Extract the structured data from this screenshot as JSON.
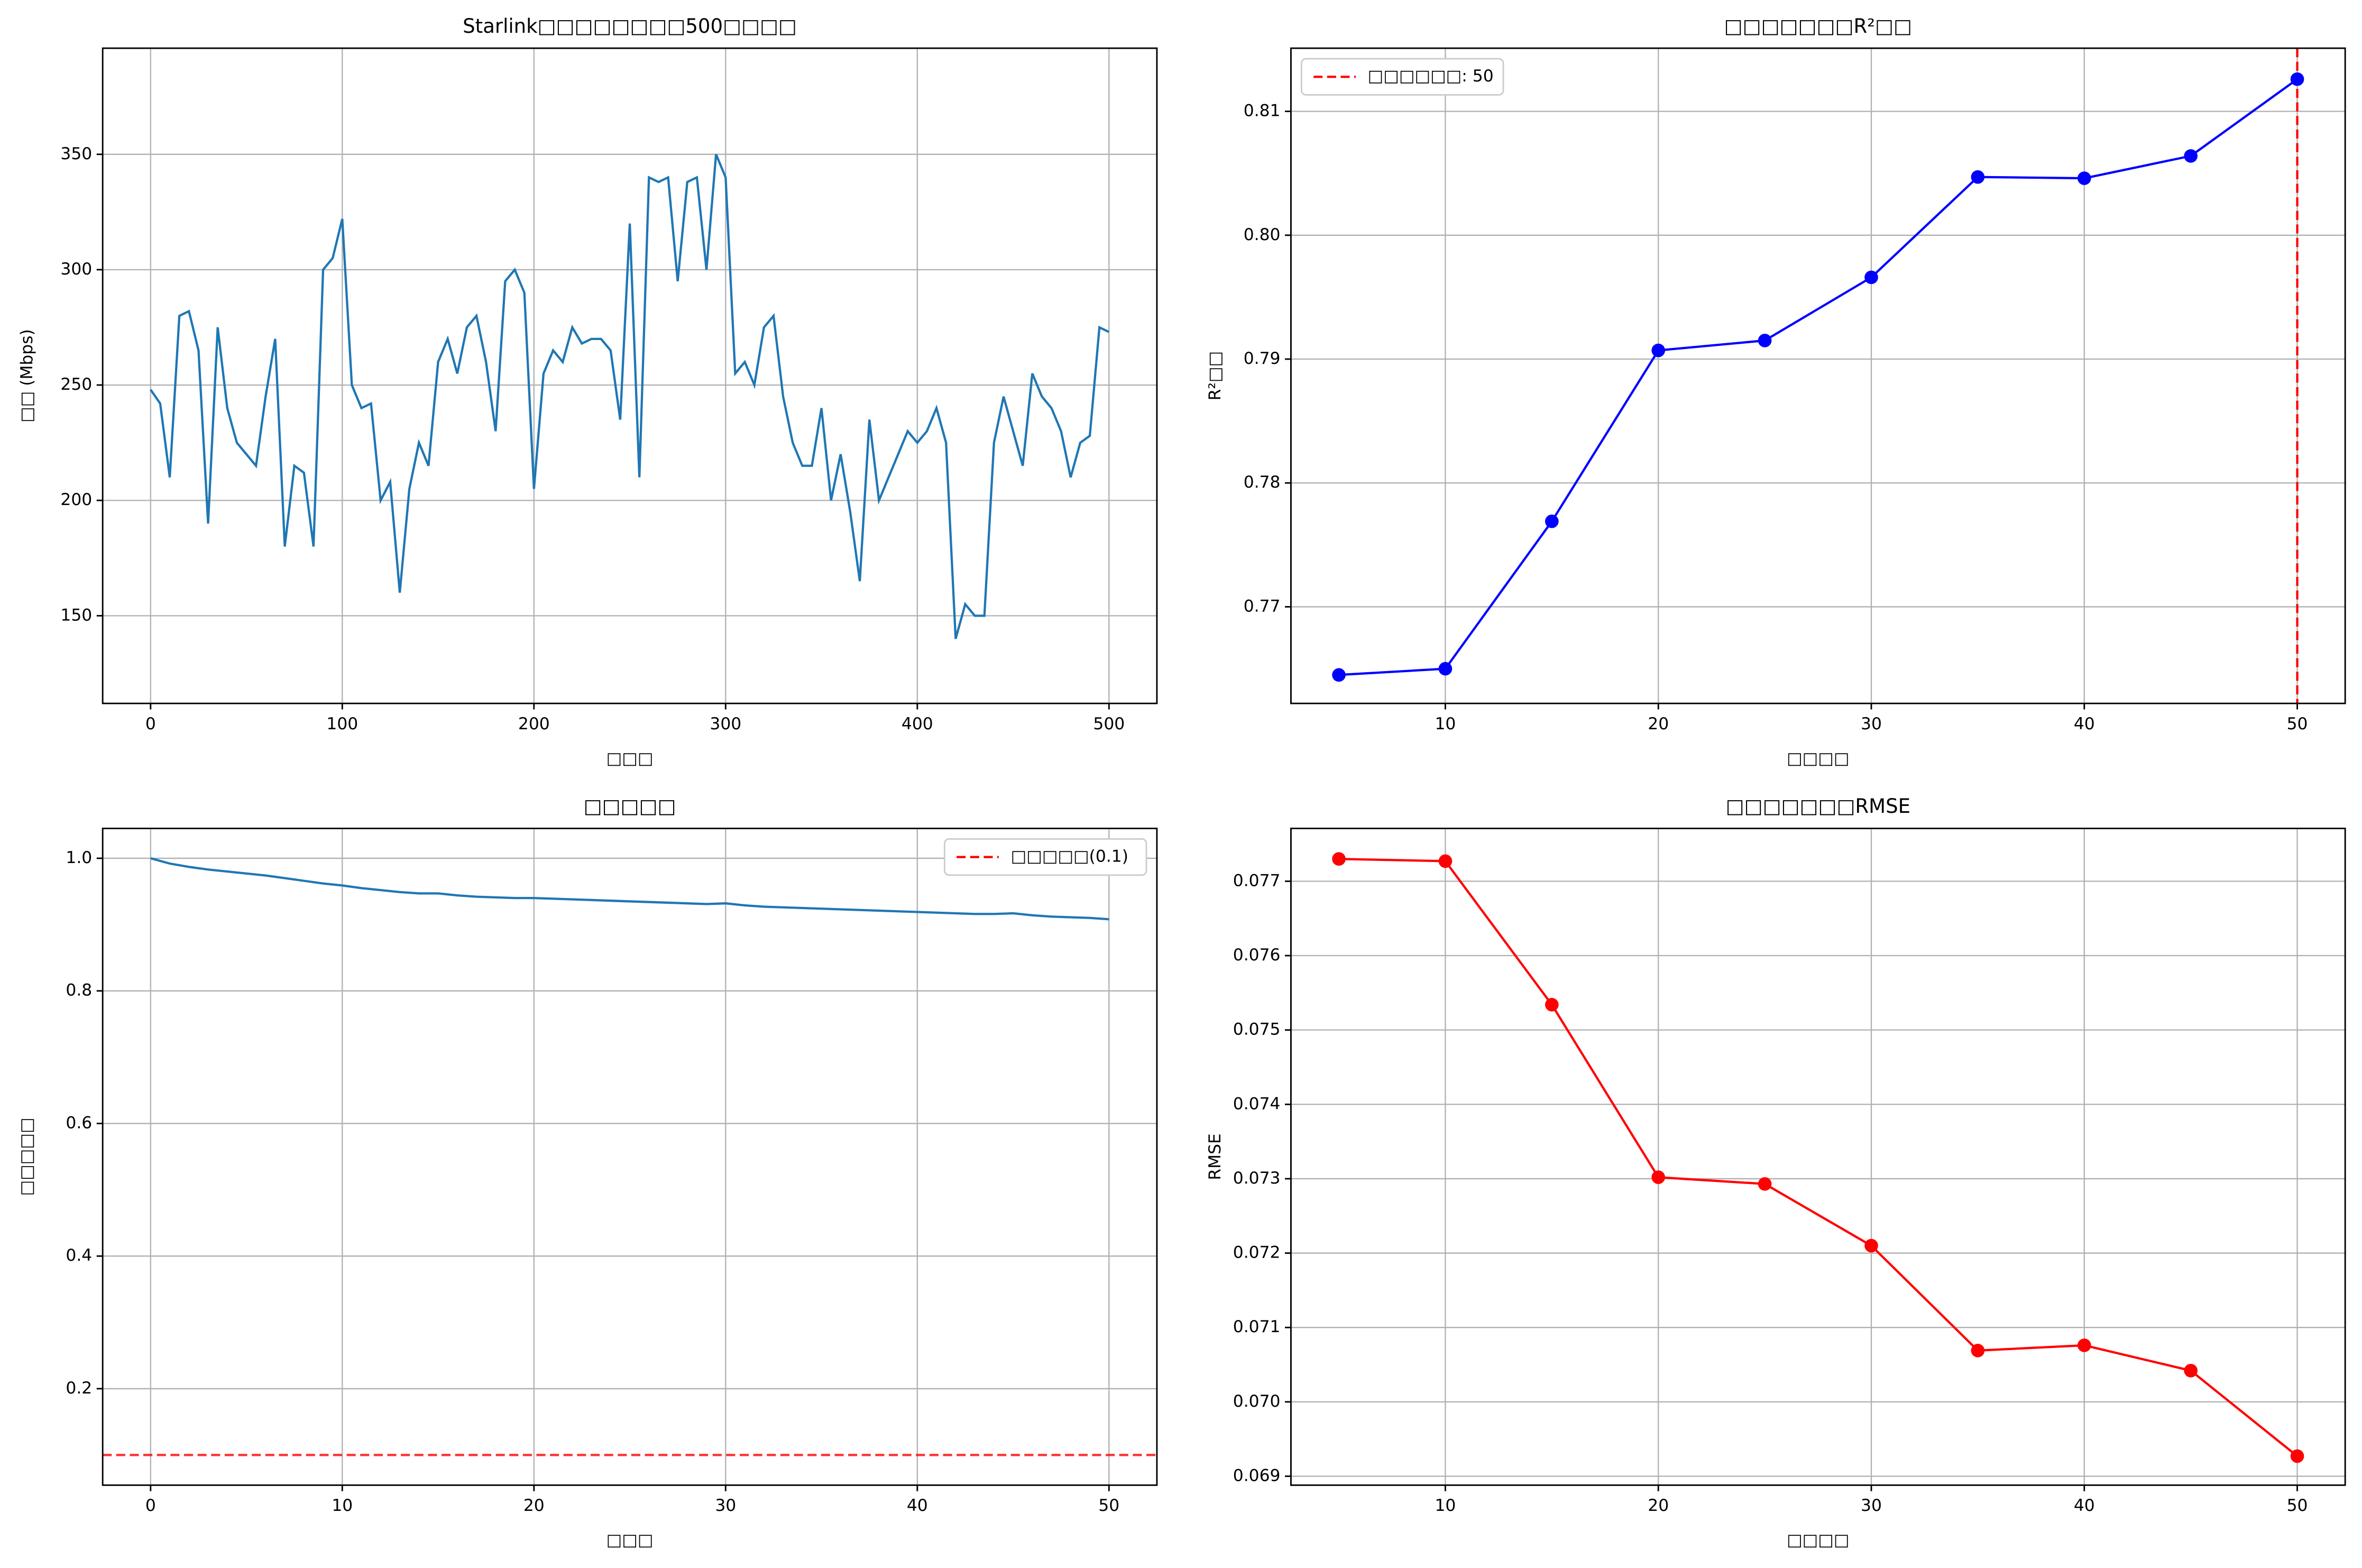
{
  "chart_data": [
    {
      "type": "line",
      "title": "Starlink□□□□□□□□500□□□□",
      "xlabel": "□□□",
      "ylabel": "□□ (Mbps)",
      "x": [
        0,
        5,
        10,
        15,
        20,
        25,
        30,
        35,
        40,
        45,
        50,
        55,
        60,
        65,
        70,
        75,
        80,
        85,
        90,
        95,
        100,
        105,
        110,
        115,
        120,
        125,
        130,
        135,
        140,
        145,
        150,
        155,
        160,
        165,
        170,
        175,
        180,
        185,
        190,
        195,
        200,
        205,
        210,
        215,
        220,
        225,
        230,
        235,
        240,
        245,
        250,
        255,
        260,
        265,
        270,
        275,
        280,
        285,
        290,
        295,
        300,
        305,
        310,
        315,
        320,
        325,
        330,
        335,
        340,
        345,
        350,
        355,
        360,
        365,
        370,
        375,
        380,
        385,
        390,
        395,
        400,
        405,
        410,
        415,
        420,
        425,
        430,
        435,
        440,
        445,
        450,
        455,
        460,
        465,
        470,
        475,
        480,
        485,
        490,
        495,
        500
      ],
      "series": [
        {
          "color": "#1f77b4",
          "marker": false,
          "values": [
            248,
            242,
            210,
            280,
            282,
            265,
            190,
            275,
            240,
            225,
            220,
            215,
            245,
            270,
            180,
            215,
            212,
            180,
            300,
            305,
            322,
            250,
            240,
            242,
            200,
            208,
            160,
            205,
            225,
            215,
            260,
            270,
            255,
            275,
            280,
            260,
            230,
            295,
            300,
            290,
            205,
            255,
            265,
            260,
            275,
            268,
            270,
            270,
            265,
            235,
            320,
            210,
            340,
            338,
            340,
            295,
            338,
            340,
            300,
            350,
            340,
            255,
            260,
            250,
            275,
            280,
            245,
            225,
            215,
            215,
            240,
            200,
            220,
            195,
            165,
            235,
            200,
            210,
            220,
            230,
            225,
            230,
            240,
            225,
            140,
            155,
            150,
            150,
            225,
            245,
            230,
            215,
            255,
            245,
            240,
            230,
            210,
            225,
            228,
            275,
            273
          ]
        }
      ],
      "xlim": [
        -25,
        525
      ],
      "ylim": [
        112,
        396
      ],
      "xticks": [
        0,
        100,
        200,
        300,
        400,
        500
      ],
      "yticks": [
        150,
        200,
        250,
        300,
        350
      ],
      "grid": true
    },
    {
      "type": "line",
      "title": "□□□□□□□R²□□",
      "xlabel": "□□□□",
      "ylabel": "R²□□",
      "x": [
        5,
        10,
        15,
        20,
        25,
        30,
        35,
        40,
        45,
        50
      ],
      "series": [
        {
          "color": "blue",
          "marker": true,
          "values": [
            0.7645,
            0.765,
            0.7769,
            0.7907,
            0.7915,
            0.7966,
            0.8047,
            0.8046,
            0.8064,
            0.8126
          ]
        }
      ],
      "reference_lines": [
        {
          "axis": "x",
          "value": 50,
          "name": "□□□□□□: 50",
          "color": "red"
        }
      ],
      "legend": "upper left",
      "xlim": [
        2.75,
        52.25
      ],
      "ylim": [
        0.7622,
        0.8151
      ],
      "xticks": [
        10,
        20,
        30,
        40,
        50
      ],
      "yticks": [
        0.77,
        0.78,
        0.79,
        {
          "value": 0.8,
          "label": "0.80"
        },
        0.81
      ],
      "grid": true
    },
    {
      "type": "line",
      "title": "□□□□□",
      "xlabel": "□□□",
      "ylabel": "□□□□□",
      "x": [
        0,
        1,
        2,
        3,
        4,
        5,
        6,
        7,
        8,
        9,
        10,
        11,
        12,
        13,
        14,
        15,
        16,
        17,
        18,
        19,
        20,
        21,
        22,
        23,
        24,
        25,
        26,
        27,
        28,
        29,
        30,
        31,
        32,
        33,
        34,
        35,
        36,
        37,
        38,
        39,
        40,
        41,
        42,
        43,
        44,
        45,
        46,
        47,
        48,
        49,
        50
      ],
      "series": [
        {
          "color": "#1f77b4",
          "marker": false,
          "values": [
            1.0,
            0.992,
            0.987,
            0.983,
            0.98,
            0.977,
            0.974,
            0.97,
            0.966,
            0.962,
            0.959,
            0.955,
            0.952,
            0.949,
            0.947,
            0.947,
            0.944,
            0.942,
            0.941,
            0.94,
            0.94,
            0.939,
            0.938,
            0.937,
            0.936,
            0.935,
            0.934,
            0.933,
            0.932,
            0.931,
            0.932,
            0.929,
            0.927,
            0.926,
            0.925,
            0.924,
            0.923,
            0.922,
            0.921,
            0.92,
            0.919,
            0.918,
            0.917,
            0.916,
            0.916,
            0.917,
            0.914,
            0.912,
            0.911,
            0.91,
            0.908
          ]
        }
      ],
      "reference_lines": [
        {
          "axis": "y",
          "value": 0.1,
          "name": "□□□□□(0.1)",
          "color": "red"
        }
      ],
      "legend": "upper right",
      "xlim": [
        -2.5,
        52.5
      ],
      "ylim": [
        0.0545,
        1.045
      ],
      "xticks": [
        0,
        10,
        20,
        30,
        40,
        50
      ],
      "yticks": [
        0.2,
        0.4,
        0.6,
        0.8,
        {
          "value": 1.0,
          "label": "1.0"
        }
      ],
      "grid": true
    },
    {
      "type": "line",
      "title": "□□□□□□□RMSE",
      "xlabel": "□□□□",
      "ylabel": "RMSE",
      "x": [
        5,
        10,
        15,
        20,
        25,
        30,
        35,
        40,
        45,
        50
      ],
      "series": [
        {
          "color": "red",
          "marker": true,
          "values": [
            0.0773,
            0.07727,
            0.07534,
            0.07302,
            0.07293,
            0.0721,
            0.07069,
            0.07076,
            0.07042,
            0.06927
          ]
        }
      ],
      "xlim": [
        2.75,
        52.25
      ],
      "ylim": [
        0.06888,
        0.07771
      ],
      "xticks": [
        10,
        20,
        30,
        40,
        50
      ],
      "yticks": [
        0.069,
        {
          "value": 0.07,
          "label": "0.070"
        },
        0.071,
        0.072,
        0.073,
        0.074,
        0.075,
        0.076,
        0.077
      ],
      "grid": true
    }
  ]
}
